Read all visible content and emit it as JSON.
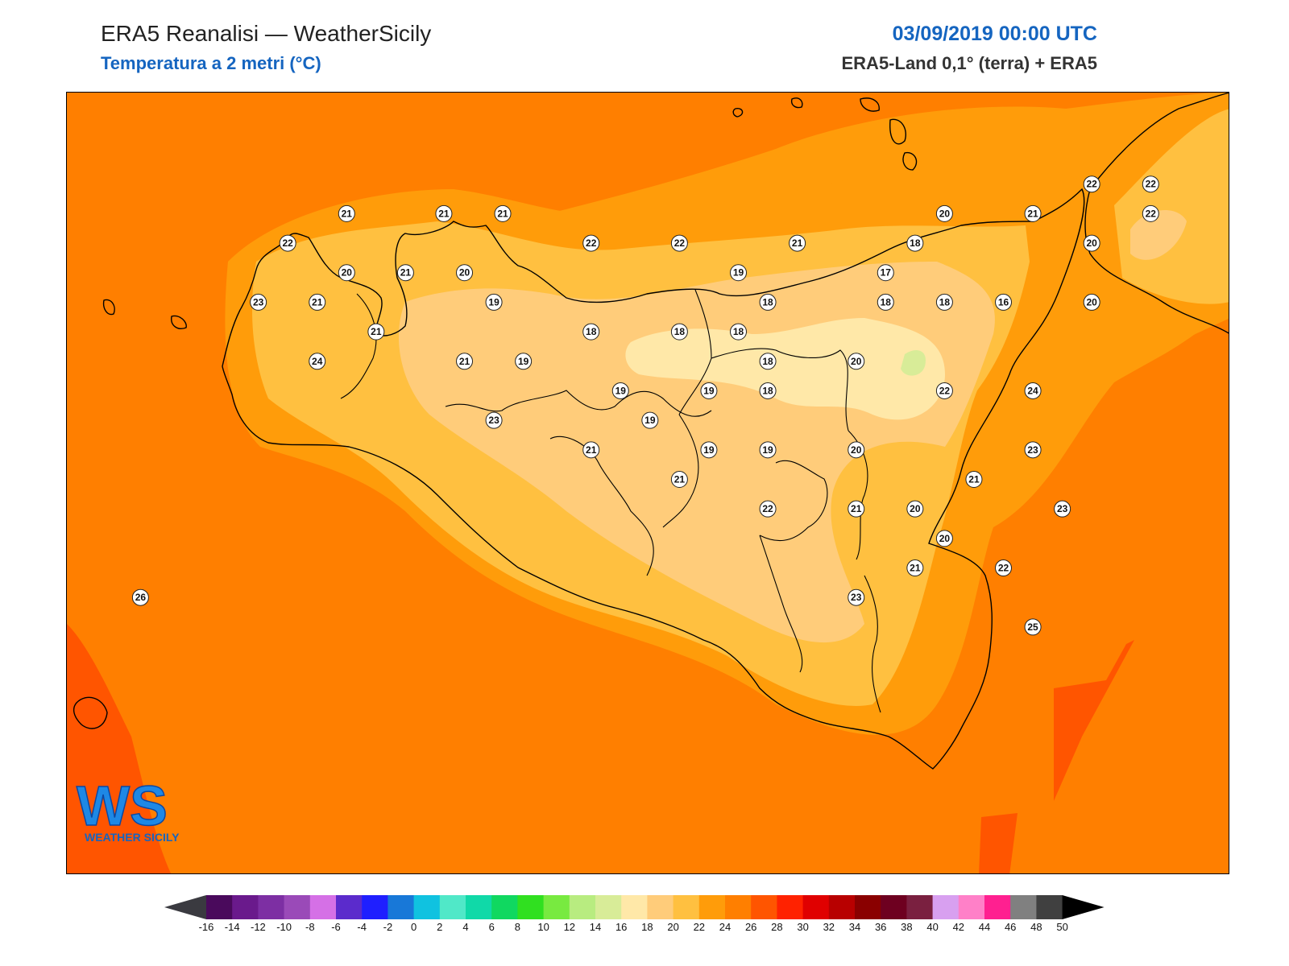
{
  "header": {
    "title": "ERA5 Reanalisi — WeatherSicily",
    "subtitle": "Temperatura a 2 metri (°C)",
    "datetime": "03/09/2019 00:00 UTC",
    "source": "ERA5-Land 0,1° (terra) + ERA5"
  },
  "logo": {
    "letters": "WS",
    "text": "WEATHER SICILY"
  },
  "colorbar": {
    "ticks": [
      "-16",
      "-14",
      "-12",
      "-10",
      "-8",
      "-6",
      "-4",
      "-2",
      "0",
      "2",
      "4",
      "6",
      "8",
      "10",
      "12",
      "14",
      "16",
      "18",
      "20",
      "22",
      "24",
      "26",
      "28",
      "30",
      "32",
      "34",
      "36",
      "38",
      "40",
      "42",
      "44",
      "46",
      "48",
      "50"
    ],
    "colors": [
      "#4a0a5c",
      "#6a1a8c",
      "#7d2fa3",
      "#9a4ab8",
      "#d570e6",
      "#5b2bcc",
      "#1f1fff",
      "#1878d8",
      "#10c2e0",
      "#50e8c8",
      "#10d9a8",
      "#10d860",
      "#30e020",
      "#78ea40",
      "#b8ec80",
      "#d8ec98",
      "#ffe8a8",
      "#ffcc7a",
      "#ffc040",
      "#ff9c0a",
      "#ff7f00",
      "#ff5500",
      "#ff2200",
      "#e00000",
      "#b80000",
      "#8a0000",
      "#6e0020",
      "#7a2040",
      "#d8a0f0",
      "#ff80c8",
      "#ff2090",
      "#808080",
      "#404040"
    ],
    "under_color": "#3a3a40",
    "over_color": "#000000"
  },
  "stations": [
    {
      "lat": 38.19,
      "lon": 12.75,
      "t": "21"
    },
    {
      "lat": 38.19,
      "lon": 13.08,
      "t": "21"
    },
    {
      "lat": 38.19,
      "lon": 13.28,
      "t": "21"
    },
    {
      "lat": 38.09,
      "lon": 12.55,
      "t": "22"
    },
    {
      "lat": 38.09,
      "lon": 13.58,
      "t": "22"
    },
    {
      "lat": 38.09,
      "lon": 13.88,
      "t": "22"
    },
    {
      "lat": 38.09,
      "lon": 14.28,
      "t": "21"
    },
    {
      "lat": 38.09,
      "lon": 14.68,
      "t": "18"
    },
    {
      "lat": 38.19,
      "lon": 14.78,
      "t": "20"
    },
    {
      "lat": 38.19,
      "lon": 15.08,
      "t": "21"
    },
    {
      "lat": 38.29,
      "lon": 15.28,
      "t": "22"
    },
    {
      "lat": 38.29,
      "lon": 15.48,
      "t": "22"
    },
    {
      "lat": 38.19,
      "lon": 15.48,
      "t": "22"
    },
    {
      "lat": 38.09,
      "lon": 15.28,
      "t": "20"
    },
    {
      "lat": 37.99,
      "lon": 12.75,
      "t": "20"
    },
    {
      "lat": 37.99,
      "lon": 12.95,
      "t": "21"
    },
    {
      "lat": 37.99,
      "lon": 13.15,
      "t": "20"
    },
    {
      "lat": 37.99,
      "lon": 14.08,
      "t": "19"
    },
    {
      "lat": 37.99,
      "lon": 14.58,
      "t": "17"
    },
    {
      "lat": 37.89,
      "lon": 12.45,
      "t": "23"
    },
    {
      "lat": 37.89,
      "lon": 12.65,
      "t": "21"
    },
    {
      "lat": 37.89,
      "lon": 13.25,
      "t": "19"
    },
    {
      "lat": 37.89,
      "lon": 14.18,
      "t": "18"
    },
    {
      "lat": 37.89,
      "lon": 14.58,
      "t": "18"
    },
    {
      "lat": 37.89,
      "lon": 14.78,
      "t": "18"
    },
    {
      "lat": 37.89,
      "lon": 14.98,
      "t": "16"
    },
    {
      "lat": 37.89,
      "lon": 15.28,
      "t": "20"
    },
    {
      "lat": 37.79,
      "lon": 12.85,
      "t": "21"
    },
    {
      "lat": 37.79,
      "lon": 13.58,
      "t": "18"
    },
    {
      "lat": 37.79,
      "lon": 13.88,
      "t": "18"
    },
    {
      "lat": 37.79,
      "lon": 14.08,
      "t": "18"
    },
    {
      "lat": 37.69,
      "lon": 12.65,
      "t": "24"
    },
    {
      "lat": 37.69,
      "lon": 13.15,
      "t": "21"
    },
    {
      "lat": 37.69,
      "lon": 13.35,
      "t": "19"
    },
    {
      "lat": 37.69,
      "lon": 14.18,
      "t": "18"
    },
    {
      "lat": 37.69,
      "lon": 14.48,
      "t": "20"
    },
    {
      "lat": 37.59,
      "lon": 13.68,
      "t": "19"
    },
    {
      "lat": 37.59,
      "lon": 13.98,
      "t": "19"
    },
    {
      "lat": 37.59,
      "lon": 14.18,
      "t": "18"
    },
    {
      "lat": 37.59,
      "lon": 14.78,
      "t": "22"
    },
    {
      "lat": 37.59,
      "lon": 15.08,
      "t": "24"
    },
    {
      "lat": 37.49,
      "lon": 13.25,
      "t": "23"
    },
    {
      "lat": 37.49,
      "lon": 13.78,
      "t": "19"
    },
    {
      "lat": 37.39,
      "lon": 13.58,
      "t": "21"
    },
    {
      "lat": 37.39,
      "lon": 13.98,
      "t": "19"
    },
    {
      "lat": 37.39,
      "lon": 14.18,
      "t": "19"
    },
    {
      "lat": 37.39,
      "lon": 14.48,
      "t": "20"
    },
    {
      "lat": 37.39,
      "lon": 15.08,
      "t": "23"
    },
    {
      "lat": 37.29,
      "lon": 13.88,
      "t": "21"
    },
    {
      "lat": 37.29,
      "lon": 14.88,
      "t": "21"
    },
    {
      "lat": 37.19,
      "lon": 14.18,
      "t": "22"
    },
    {
      "lat": 37.19,
      "lon": 14.48,
      "t": "21"
    },
    {
      "lat": 37.19,
      "lon": 14.68,
      "t": "20"
    },
    {
      "lat": 37.19,
      "lon": 15.18,
      "t": "23"
    },
    {
      "lat": 37.09,
      "lon": 14.78,
      "t": "20"
    },
    {
      "lat": 36.99,
      "lon": 14.68,
      "t": "21"
    },
    {
      "lat": 36.99,
      "lon": 14.98,
      "t": "22"
    },
    {
      "lat": 36.89,
      "lon": 14.48,
      "t": "23"
    },
    {
      "lat": 36.79,
      "lon": 15.08,
      "t": "25"
    },
    {
      "lat": 36.89,
      "lon": 12.05,
      "t": "26"
    }
  ]
}
